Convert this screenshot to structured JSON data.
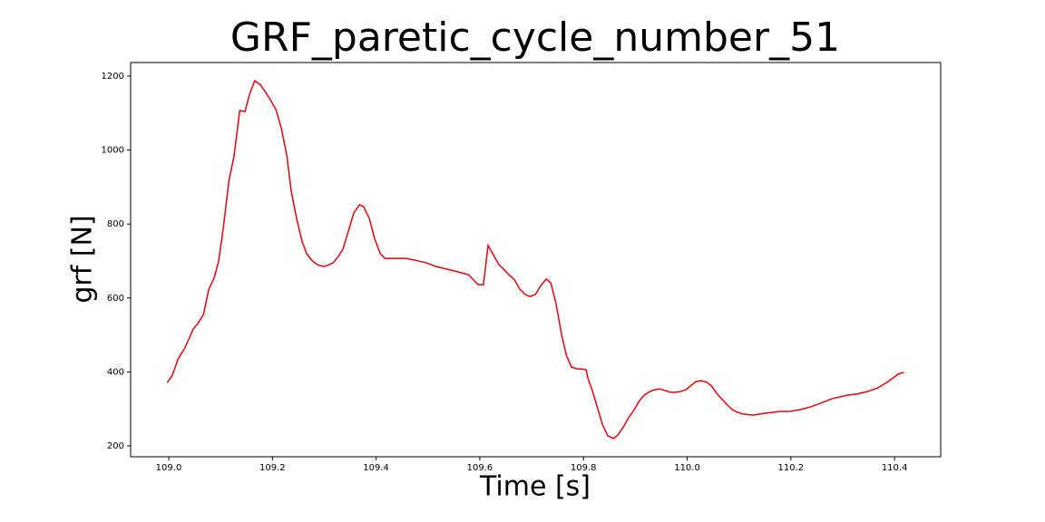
{
  "chart_data": {
    "type": "line",
    "title": "GRF_paretic_cycle_number_51",
    "x_label": "Time [s]",
    "y_label": "grf [N]",
    "color": "#e8000b",
    "x": [
      108.997,
      109.007,
      109.018,
      109.03,
      109.04,
      109.047,
      109.056,
      109.067,
      109.077,
      109.088,
      109.096,
      109.105,
      109.116,
      109.126,
      109.137,
      109.147,
      109.156,
      109.166,
      109.177,
      109.187,
      109.196,
      109.207,
      109.217,
      109.228,
      109.236,
      109.247,
      109.257,
      109.266,
      109.277,
      109.287,
      109.298,
      109.306,
      109.317,
      109.327,
      109.336,
      109.347,
      109.357,
      109.368,
      109.376,
      109.387,
      109.397,
      109.408,
      109.417,
      109.427,
      109.438,
      109.457,
      109.476,
      109.497,
      109.516,
      109.537,
      109.557,
      109.578,
      109.597,
      109.607,
      109.616,
      109.627,
      109.637,
      109.648,
      109.656,
      109.667,
      109.677,
      109.688,
      109.697,
      109.707,
      109.718,
      109.728,
      109.737,
      109.747,
      109.758,
      109.767,
      109.777,
      109.788,
      109.796,
      109.805,
      109.809,
      109.817,
      109.828,
      109.837,
      109.847,
      109.858,
      109.866,
      109.877,
      109.887,
      109.898,
      109.907,
      109.917,
      109.928,
      109.938,
      109.947,
      109.957,
      109.968,
      109.977,
      109.987,
      109.998,
      110.008,
      110.017,
      110.027,
      110.038,
      110.047,
      110.057,
      110.068,
      110.078,
      110.087,
      110.097,
      110.108,
      110.127,
      110.148,
      110.167,
      110.178,
      110.197,
      110.218,
      110.237,
      110.257,
      110.278,
      110.308,
      110.327,
      110.348,
      110.368,
      110.388,
      110.407,
      110.418
    ],
    "values": [
      371,
      391,
      435,
      462,
      492,
      516,
      531,
      555,
      622,
      656,
      698,
      786,
      916,
      984,
      1107,
      1104,
      1151,
      1188,
      1176,
      1156,
      1136,
      1109,
      1060,
      984,
      891,
      813,
      754,
      720,
      700,
      690,
      685,
      688,
      695,
      712,
      732,
      783,
      830,
      852,
      847,
      815,
      761,
      720,
      707,
      707,
      707,
      707,
      702,
      695,
      685,
      678,
      671,
      663,
      636,
      636,
      742,
      715,
      690,
      675,
      663,
      649,
      624,
      609,
      604,
      609,
      634,
      651,
      641,
      585,
      499,
      445,
      413,
      408,
      408,
      406,
      381,
      350,
      298,
      256,
      227,
      220,
      229,
      251,
      276,
      298,
      320,
      337,
      347,
      352,
      354,
      350,
      345,
      345,
      347,
      352,
      364,
      374,
      376,
      372,
      362,
      342,
      325,
      310,
      298,
      291,
      286,
      283,
      288,
      291,
      293,
      293,
      298,
      305,
      315,
      327,
      337,
      340,
      347,
      357,
      374,
      394,
      399
    ],
    "xlim": [
      108.9265,
      110.489
    ],
    "ylim": [
      170.6,
      1236.8
    ],
    "xticks": [
      {
        "value": 109.0,
        "label": "109.0"
      },
      109.2,
      109.4,
      109.6,
      109.8,
      {
        "value": 110.0,
        "label": "110.0"
      },
      110.2,
      110.4
    ],
    "yticks": [
      200,
      400,
      600,
      800,
      1000,
      1200
    ]
  }
}
